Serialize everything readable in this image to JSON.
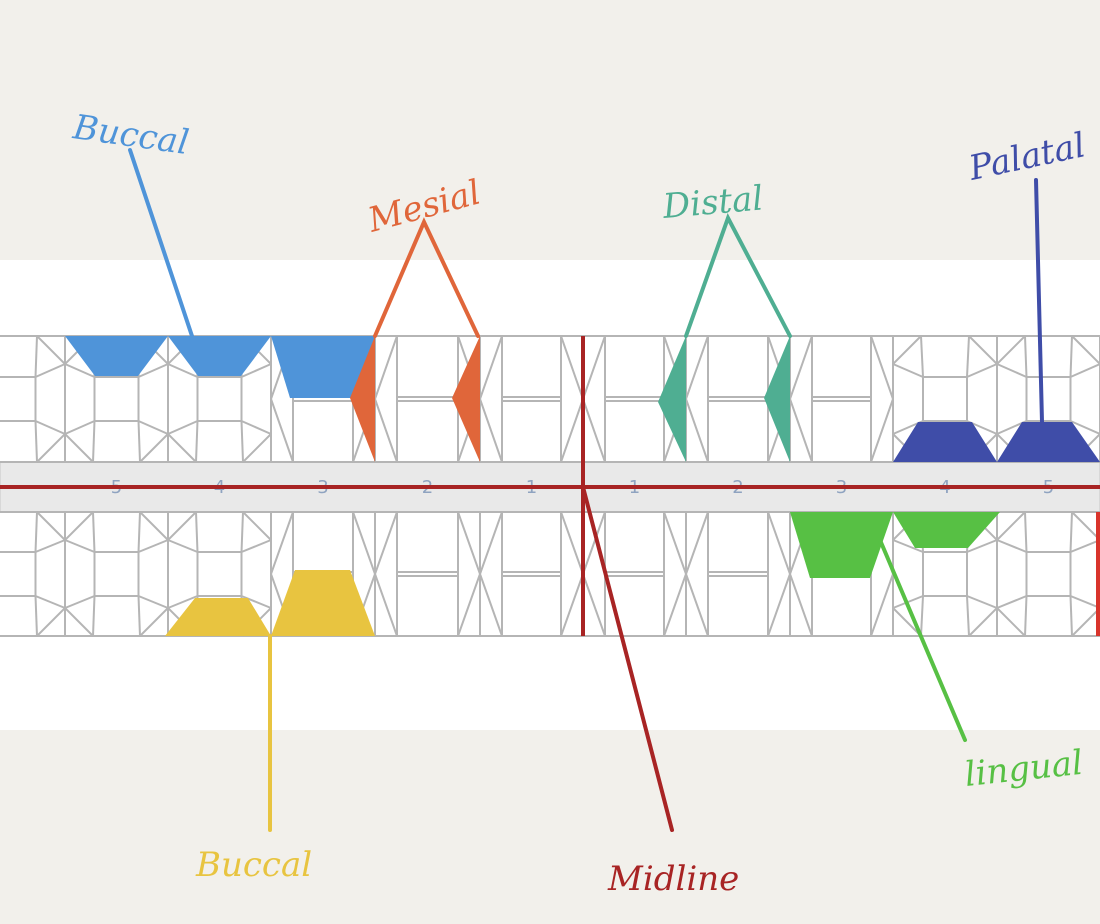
{
  "annotations": [
    "Buccal",
    "Mesial",
    "Distal",
    "Palatal",
    "Buccal",
    "Midline",
    "lingual"
  ],
  "tooth_numbers": {
    "left": [
      5,
      4,
      3,
      2,
      1
    ],
    "right": [
      1,
      2,
      3,
      4,
      5
    ]
  }
}
